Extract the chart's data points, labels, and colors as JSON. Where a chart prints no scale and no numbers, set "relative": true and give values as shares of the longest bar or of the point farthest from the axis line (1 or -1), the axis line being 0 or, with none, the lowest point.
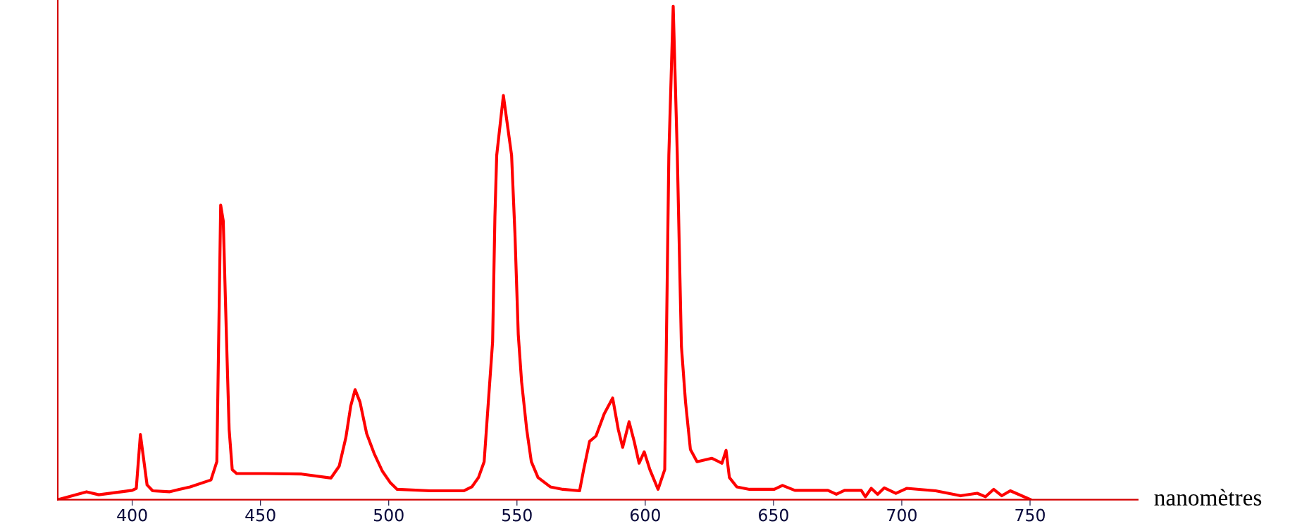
{
  "chart_data": {
    "type": "line",
    "relative": true,
    "xlabel": "nanomètres",
    "xlim": [
      371,
      792
    ],
    "xticks": [
      400,
      450,
      500,
      550,
      600,
      650,
      700,
      750
    ],
    "series": [
      {
        "color": "#ff0000",
        "x": [
          371,
          382.2,
          387,
          400,
          401.6,
          403.2,
          405.8,
          408,
          414.5,
          422.6,
          430.7,
          433,
          434.5,
          435.5,
          436.8,
          437.8,
          439,
          440.7,
          451.7,
          466,
          477.5,
          480.7,
          483.3,
          485.2,
          486.9,
          488.8,
          491.4,
          494.3,
          497.5,
          500.7,
          503.3,
          516.2,
          529.2,
          532.4,
          535,
          537.2,
          538.8,
          540.5,
          541.4,
          542.1,
          544.7,
          547.9,
          549.2,
          550.5,
          551.8,
          553.8,
          555.6,
          558.2,
          563,
          567.9,
          574.4,
          576,
          578.3,
          580.8,
          584,
          587.3,
          589.5,
          591.2,
          593.7,
          595.7,
          597.6,
          599.6,
          601.8,
          605,
          607.6,
          609.2,
          610.9,
          612.5,
          614.1,
          615.7,
          617.6,
          620.2,
          626,
          629.9,
          631.5,
          632.8,
          635.7,
          640.6,
          650.3,
          653.5,
          658.3,
          671.2,
          674.5,
          677.7,
          684.2,
          685.8,
          688.1,
          690.6,
          693.2,
          697.7,
          701.9,
          713.2,
          722.9,
          729.4,
          732.6,
          735.8,
          739,
          742.3,
          750.3
        ],
        "values": [
          0,
          0.016,
          0.01,
          0.019,
          0.023,
          0.132,
          0.03,
          0.018,
          0.016,
          0.026,
          0.04,
          0.077,
          0.597,
          0.565,
          0.32,
          0.142,
          0.061,
          0.053,
          0.053,
          0.052,
          0.044,
          0.068,
          0.126,
          0.19,
          0.223,
          0.198,
          0.134,
          0.094,
          0.058,
          0.034,
          0.021,
          0.018,
          0.018,
          0.026,
          0.045,
          0.077,
          0.195,
          0.32,
          0.574,
          0.698,
          0.819,
          0.698,
          0.54,
          0.335,
          0.239,
          0.142,
          0.077,
          0.045,
          0.026,
          0.021,
          0.018,
          0.061,
          0.118,
          0.129,
          0.174,
          0.206,
          0.142,
          0.106,
          0.158,
          0.118,
          0.074,
          0.097,
          0.061,
          0.021,
          0.061,
          0.698,
          1.0,
          0.698,
          0.311,
          0.198,
          0.102,
          0.077,
          0.084,
          0.074,
          0.1,
          0.045,
          0.026,
          0.021,
          0.021,
          0.029,
          0.019,
          0.019,
          0.011,
          0.019,
          0.019,
          0.006,
          0.023,
          0.011,
          0.024,
          0.013,
          0.023,
          0.018,
          0.008,
          0.013,
          0.006,
          0.021,
          0.008,
          0.018,
          0
        ]
      }
    ]
  }
}
